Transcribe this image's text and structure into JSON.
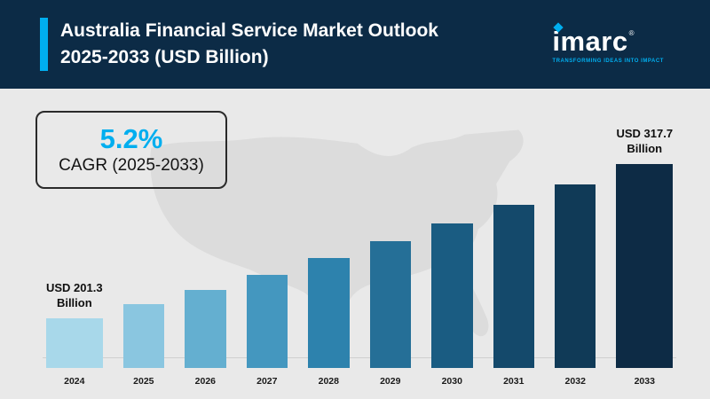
{
  "header": {
    "title_line1": "Australia Financial Service Market Outlook",
    "title_line2": "2025-2033 (USD Billion)",
    "logo": {
      "text": "imarc",
      "registered": "®",
      "tagline": "TRANSFORMING IDEAS INTO IMPACT"
    }
  },
  "cagr_box": {
    "value": "5.2%",
    "label": "CAGR (2025-2033)"
  },
  "annotations": {
    "2024": [
      "USD 201.3",
      "Billion"
    ],
    "2033": [
      "USD 317.7",
      "Billion"
    ]
  },
  "colors": {
    "header_bg": "#0c2b46",
    "accent_cyan": "#00aeef",
    "body_bg": "#e9e9e9",
    "map_silhouette": "#dcdcdc",
    "cagr_value": "#00aeef"
  },
  "chart_data": {
    "type": "bar",
    "title": "Australia Financial Service Market Outlook 2025-2033 (USD Billion)",
    "xlabel": "",
    "ylabel": "",
    "categories": [
      "2024",
      "2025",
      "2026",
      "2027",
      "2028",
      "2029",
      "2030",
      "2031",
      "2032",
      "2033"
    ],
    "values": [
      201.3,
      211.8,
      222.8,
      234.4,
      246.6,
      259.4,
      272.9,
      287.1,
      302.0,
      317.7
    ],
    "labeled_points": {
      "2024": "USD 201.3 Billion",
      "2033": "USD 317.7 Billion"
    },
    "cagr": "5.2% (2025-2033)",
    "bar_colors": [
      "#a8d8ea",
      "#8ac6e0",
      "#64afd0",
      "#4497bf",
      "#2d82ad",
      "#256f97",
      "#1a5c82",
      "#14496b",
      "#103a57",
      "#0d2b45"
    ],
    "legend": null,
    "grid": false
  }
}
